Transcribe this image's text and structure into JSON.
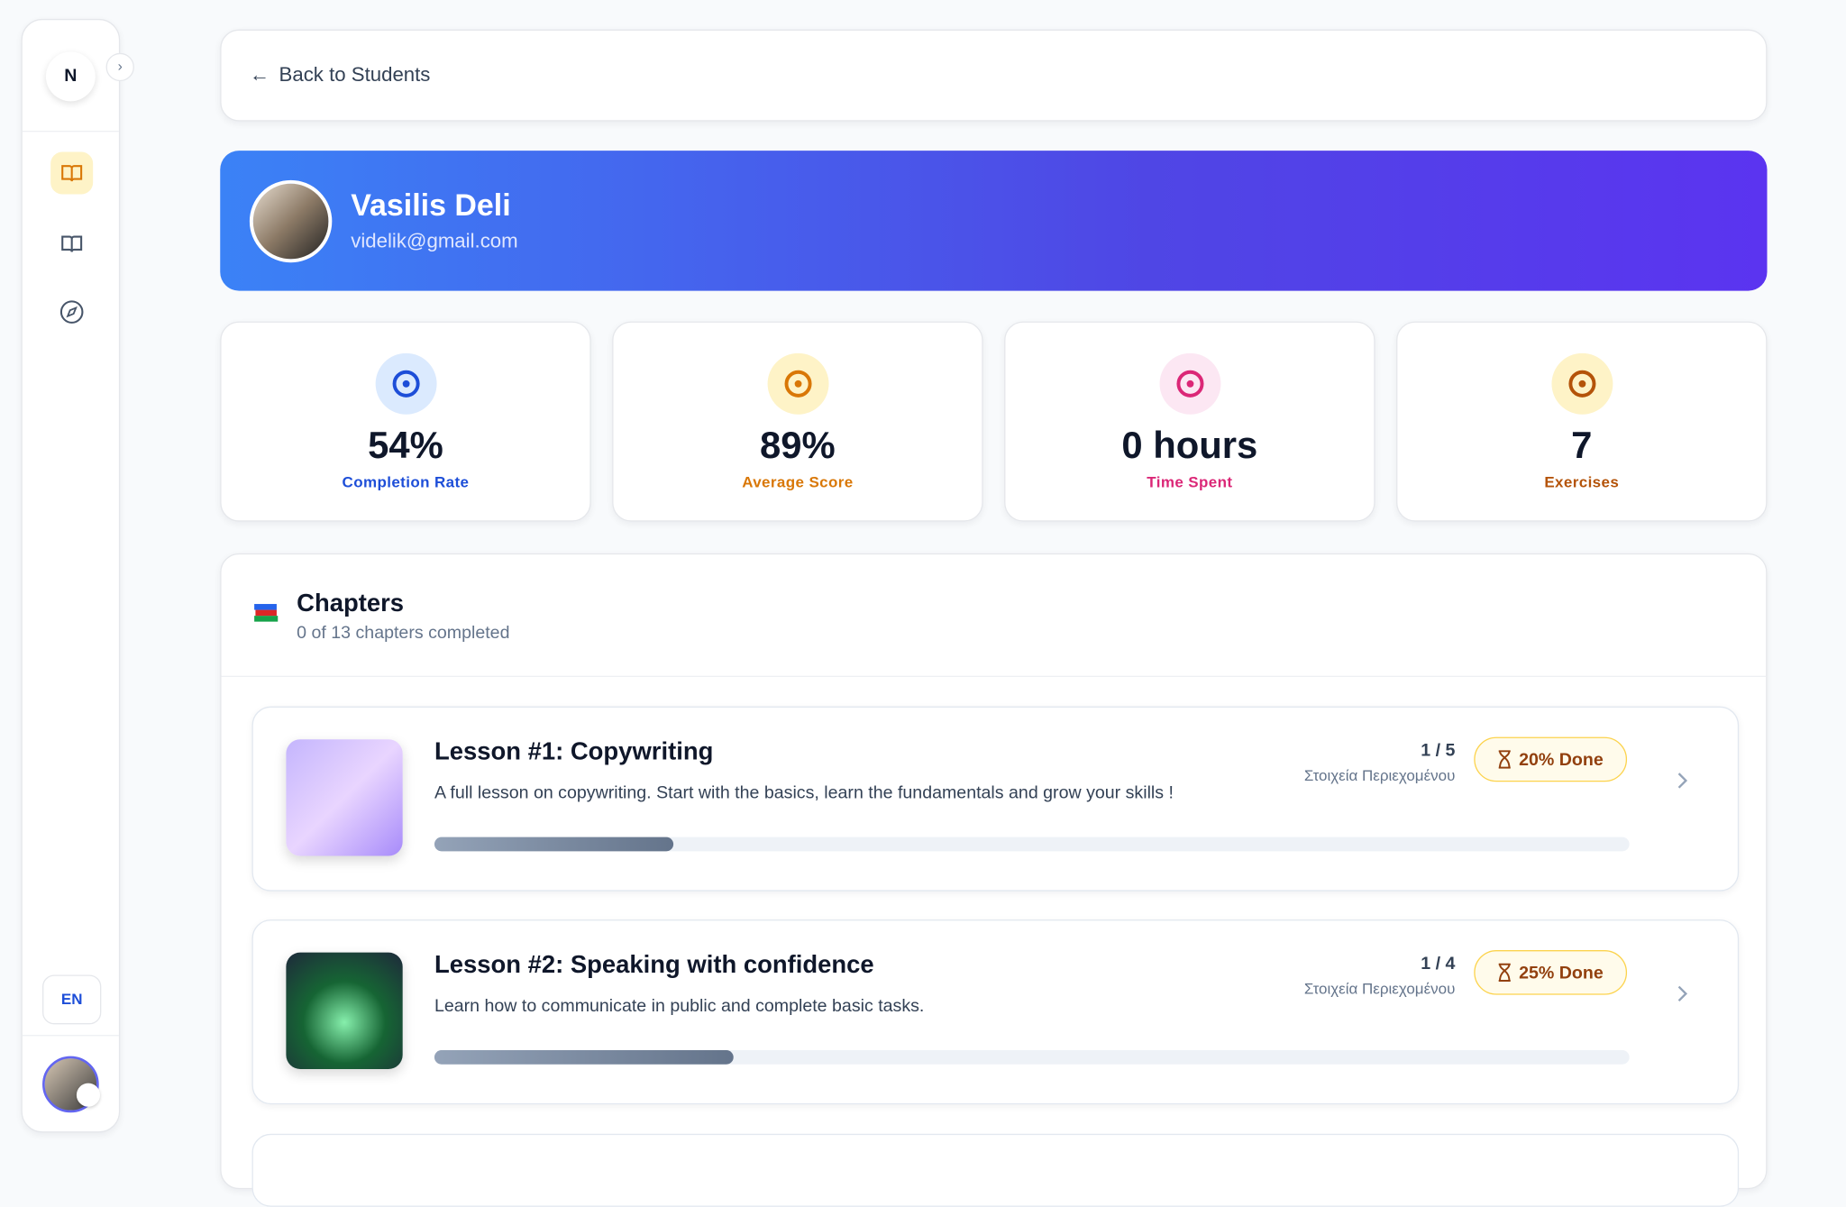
{
  "sidebar": {
    "logo": "N",
    "language": "EN"
  },
  "header": {
    "back_link": "Back to Students"
  },
  "profile": {
    "name": "Vasilis Deli",
    "email": "videlik@gmail.com"
  },
  "stats": [
    {
      "value": "54%",
      "label": "Completion Rate"
    },
    {
      "value": "89%",
      "label": "Average Score"
    },
    {
      "value": "0 hours",
      "label": "Time Spent"
    },
    {
      "value": "7",
      "label": "Exercises"
    }
  ],
  "chapters": {
    "title": "Chapters",
    "subtitle": "0 of 13 chapters completed",
    "lessons": [
      {
        "title": "Lesson #1: Copywriting",
        "description": "A full lesson on copywriting. Start with the basics, learn the fundamentals and grow your skills !",
        "count": "1 / 5",
        "meta": "Στοιχεία Περιεχομένου",
        "status": "20% Done",
        "progress": 20
      },
      {
        "title": "Lesson #2: Speaking with confidence",
        "description": "Learn how to communicate in public and complete basic tasks.",
        "count": "1 / 4",
        "meta": "Στοιχεία Περιεχομένου",
        "status": "25% Done",
        "progress": 25
      }
    ]
  }
}
